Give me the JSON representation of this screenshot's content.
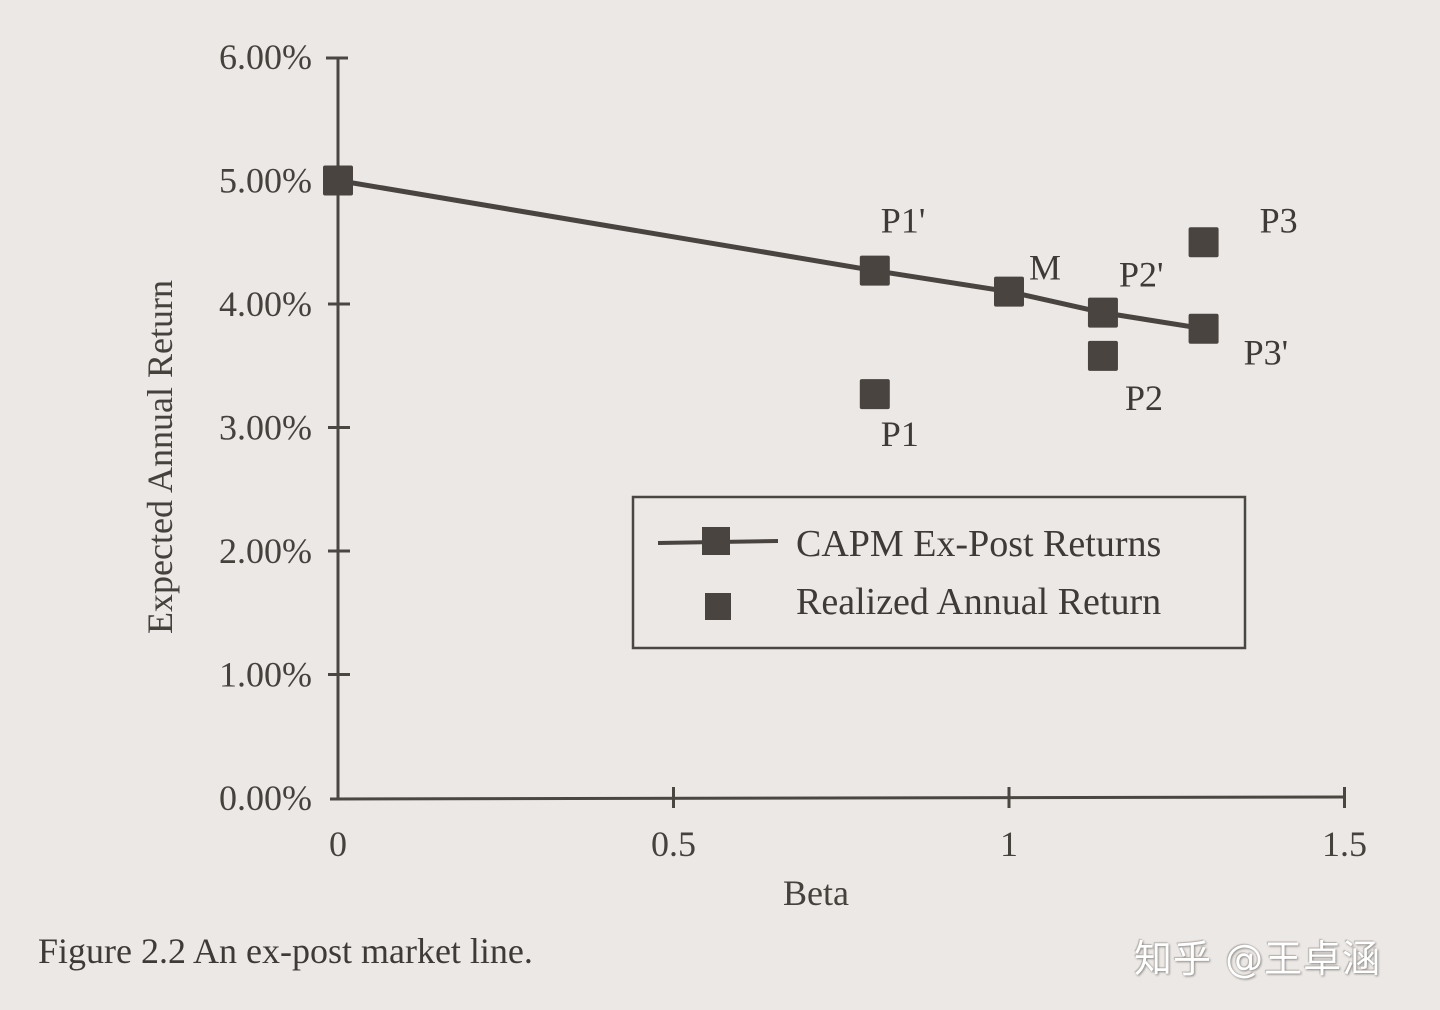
{
  "chart_data": {
    "type": "scatter",
    "title": "",
    "caption": "Figure 2.2  An ex-post market line.",
    "xlabel": "Beta",
    "ylabel": "Expected Annual Return",
    "xlim": [
      0,
      1.5
    ],
    "ylim": [
      0.0,
      6.0
    ],
    "x_ticks": [
      "0",
      "0.5",
      "1",
      "1.5"
    ],
    "y_ticks": [
      "0.00%",
      "1.00%",
      "2.00%",
      "3.00%",
      "4.00%",
      "5.00%",
      "6.00%"
    ],
    "grid": false,
    "legend_position": "lower-right-inside",
    "series": [
      {
        "name": "CAPM Ex-Post Returns",
        "style": "line-with-square-markers",
        "points": [
          {
            "label": "",
            "x": 0.0,
            "y": 5.0
          },
          {
            "label": "P1'",
            "x": 0.8,
            "y": 4.27
          },
          {
            "label": "M",
            "x": 1.0,
            "y": 4.1
          },
          {
            "label": "P2'",
            "x": 1.14,
            "y": 3.93
          },
          {
            "label": "P3'",
            "x": 1.29,
            "y": 3.8
          }
        ]
      },
      {
        "name": "Realized Annual Return",
        "style": "square-markers",
        "points": [
          {
            "label": "P1",
            "x": 0.8,
            "y": 3.27
          },
          {
            "label": "P2",
            "x": 1.14,
            "y": 3.58
          },
          {
            "label": "P3",
            "x": 1.29,
            "y": 4.5
          }
        ]
      }
    ]
  },
  "colors": {
    "background": "#ebe8e5",
    "marker": "#4a4440",
    "axis": "#4a4642",
    "text": "#3e3a37"
  },
  "watermark": "知乎 @王卓涵"
}
